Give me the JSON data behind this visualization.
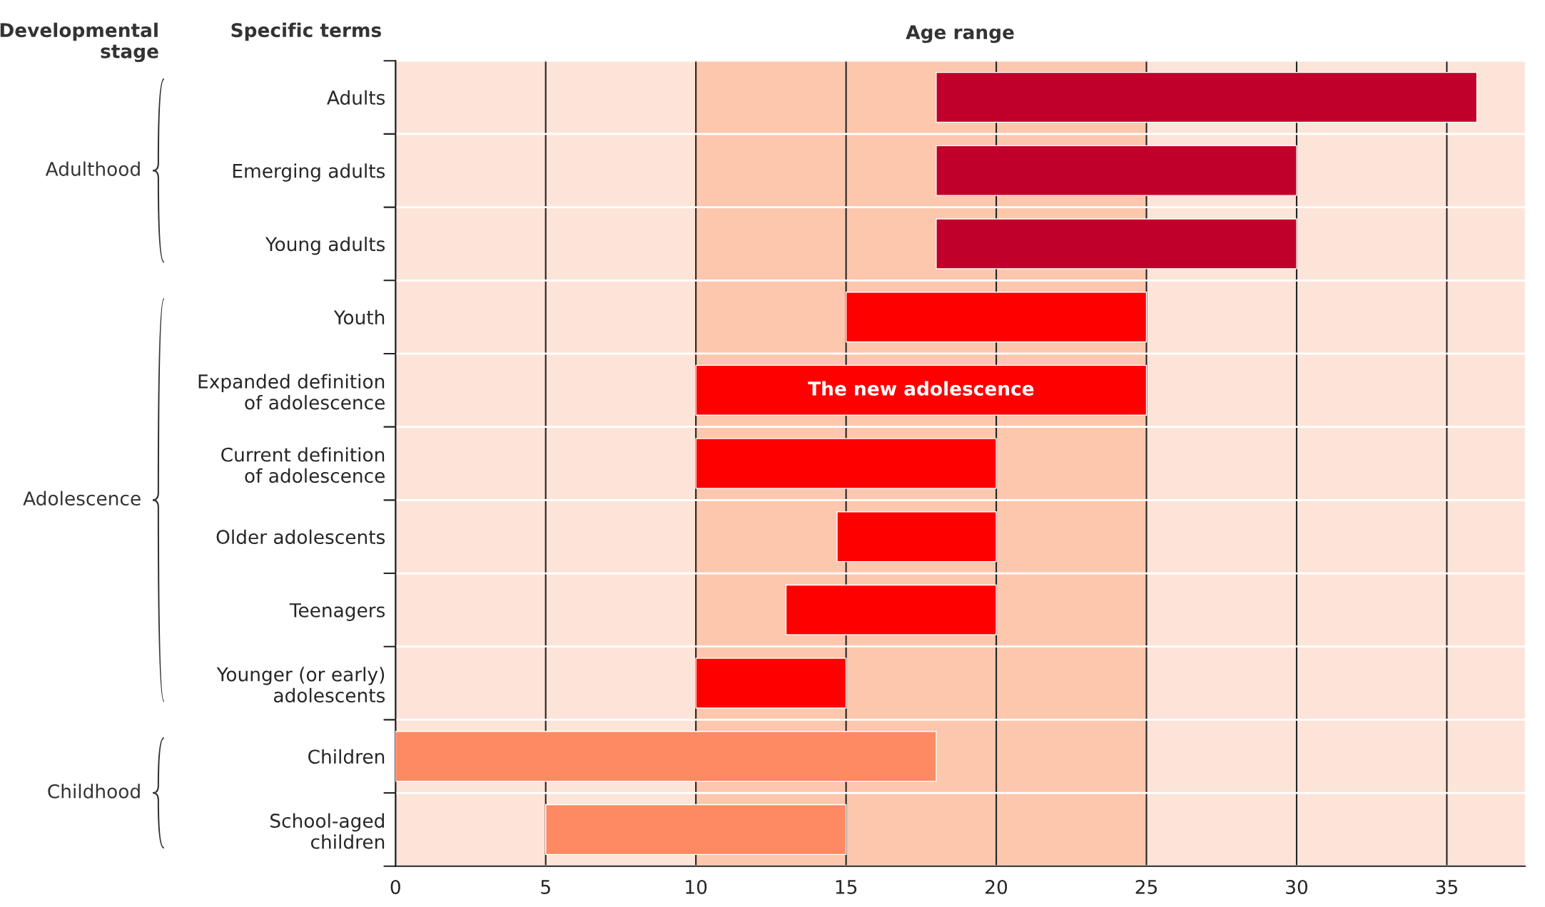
{
  "chart_data": {
    "type": "bar",
    "orientation": "horizontal",
    "title": "Age range",
    "categories": [
      "Adults",
      "Emerging adults",
      "Young adults",
      "Youth",
      "Expanded definition\nof adolescence",
      "Current definition\nof adolescence",
      "Older adolescents",
      "Teenagers",
      "Younger (or early)\nadolescents",
      "Children",
      "School-aged\nchildren"
    ],
    "base": [
      18,
      18,
      18,
      15,
      10,
      10,
      14.7,
      13,
      10,
      0,
      5
    ],
    "values": [
      18,
      12,
      12,
      10,
      15,
      10,
      5.3,
      7,
      5,
      18,
      10
    ],
    "colors": [
      "#c0002a",
      "#c0002a",
      "#c0002a",
      "#fe0000",
      "#fe0000",
      "#fe0000",
      "#fe0000",
      "#fe0000",
      "#fe0000",
      "#fd8a62",
      "#fd8a62"
    ],
    "xlim": [
      0,
      37.6
    ],
    "xticks": [
      0,
      5,
      10,
      15,
      20,
      25,
      30,
      35
    ],
    "grid": "x",
    "bands": [
      {
        "axis": "x",
        "from": 0,
        "to": 10,
        "color": "#fde4d9"
      },
      {
        "axis": "x",
        "from": 10,
        "to": 25,
        "color": "#fdc7ad"
      },
      {
        "axis": "x",
        "from": 25,
        "to": 37.6,
        "color": "#fde4d9"
      }
    ],
    "annotations": [
      "Developmental stage",
      "Specific terms",
      "Adulthood",
      "Adolescence",
      "Childhood",
      "The new adolescence"
    ]
  }
}
